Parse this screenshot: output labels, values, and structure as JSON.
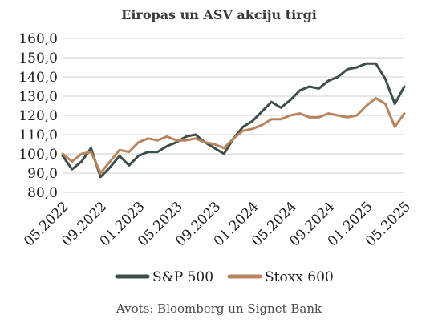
{
  "chart_data": {
    "type": "line",
    "title": "Eiropas un ASV akciju tirgi",
    "source": "Avots: Bloomberg un Signet Bank",
    "ylim": [
      80,
      160
    ],
    "yticks": [
      "160,0",
      "150,0",
      "140,0",
      "130,0",
      "120,0",
      "110,0",
      "100,0",
      "90,0",
      "80,0"
    ],
    "ytick_values": [
      160,
      150,
      140,
      130,
      120,
      110,
      100,
      90,
      80
    ],
    "xticks": [
      "05.2022",
      "09.2022",
      "01.2023",
      "05.2023",
      "09.2023",
      "01.2024",
      "05.2024",
      "09.2024",
      "01.2025",
      "05.2025"
    ],
    "xtick_values": [
      "2022-05",
      "2022-09",
      "2023-01",
      "2023-05",
      "2023-09",
      "2024-01",
      "2024-05",
      "2024-09",
      "2025-01",
      "2025-05"
    ],
    "grid": true,
    "legend_position": "bottom",
    "series": [
      {
        "name": "S&P 500",
        "color": "#3d4f47",
        "x": [
          "2022-05",
          "2022-06",
          "2022-07",
          "2022-08",
          "2022-09",
          "2022-10",
          "2022-11",
          "2022-12",
          "2023-01",
          "2023-02",
          "2023-03",
          "2023-04",
          "2023-05",
          "2023-06",
          "2023-07",
          "2023-08",
          "2023-09",
          "2023-10",
          "2023-11",
          "2023-12",
          "2024-01",
          "2024-02",
          "2024-03",
          "2024-04",
          "2024-05",
          "2024-06",
          "2024-07",
          "2024-08",
          "2024-09",
          "2024-10",
          "2024-11",
          "2024-12",
          "2025-01",
          "2025-02",
          "2025-03",
          "2025-04",
          "2025-05"
        ],
        "values": [
          99,
          92,
          96,
          103,
          88,
          93,
          99,
          94,
          99,
          101,
          101,
          104,
          106,
          109,
          110,
          106,
          103,
          100,
          108,
          114,
          117,
          122,
          127,
          124,
          128,
          133,
          135,
          134,
          138,
          140,
          144,
          145,
          147,
          147,
          139,
          126,
          135
        ]
      },
      {
        "name": "Stoxx 600",
        "color": "#b8845c",
        "x": [
          "2022-05",
          "2022-06",
          "2022-07",
          "2022-08",
          "2022-09",
          "2022-10",
          "2022-11",
          "2022-12",
          "2023-01",
          "2023-02",
          "2023-03",
          "2023-04",
          "2023-05",
          "2023-06",
          "2023-07",
          "2023-08",
          "2023-09",
          "2023-10",
          "2023-11",
          "2023-12",
          "2024-01",
          "2024-02",
          "2024-03",
          "2024-04",
          "2024-05",
          "2024-06",
          "2024-07",
          "2024-08",
          "2024-09",
          "2024-10",
          "2024-11",
          "2024-12",
          "2025-01",
          "2025-02",
          "2025-03",
          "2025-04",
          "2025-05"
        ],
        "values": [
          100,
          96,
          100,
          101,
          90,
          96,
          102,
          101,
          106,
          108,
          107,
          109,
          107,
          107,
          108,
          106,
          105,
          103,
          108,
          112,
          113,
          115,
          118,
          118,
          120,
          121,
          119,
          119,
          121,
          120,
          119,
          120,
          125,
          129,
          126,
          114,
          121
        ]
      }
    ]
  }
}
